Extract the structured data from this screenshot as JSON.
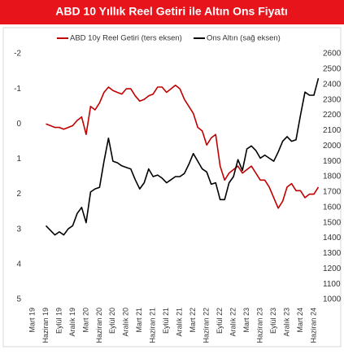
{
  "chart_data": {
    "type": "line",
    "title": "ABD 10 Yıllık Reel Getiri ile Altın Ons Fiyatı",
    "categories": [
      "Mart 19",
      null,
      null,
      "Haziran 19",
      null,
      null,
      "Eylül 19",
      null,
      null,
      "Aralık 19",
      null,
      null,
      "Mart 20",
      null,
      null,
      "Haziran 20",
      null,
      null,
      "Eylül 20",
      null,
      null,
      "Aralık 20",
      null,
      null,
      "Mart 21",
      null,
      null,
      "Haziran 21",
      null,
      null,
      "Eylül 21",
      null,
      null,
      "Aralık 21",
      null,
      null,
      "Mart 22",
      null,
      null,
      "Haziran 22",
      null,
      null,
      "Eylül 22",
      null,
      null,
      "Aralık 22",
      null,
      null,
      "Mart 23",
      null,
      null,
      "Haziran 23",
      null,
      null,
      "Eylül 23",
      null,
      null,
      "Aralık 23",
      null,
      null,
      "Mart 24",
      null,
      null,
      "Haziran 24",
      null
    ],
    "series": [
      {
        "name": "ABD 10y Reel Getiri (ters eksen)",
        "color": "#c00000",
        "axis": "y",
        "values": [
          null,
          null,
          null,
          0.0,
          0.05,
          0.1,
          0.1,
          0.15,
          0.1,
          0.05,
          -0.1,
          -0.2,
          0.3,
          -0.5,
          -0.4,
          -0.6,
          -0.9,
          -1.05,
          -0.95,
          -0.9,
          -0.85,
          -1.0,
          -1.0,
          -0.8,
          -0.65,
          -0.7,
          -0.8,
          -0.85,
          -1.05,
          -1.05,
          -0.9,
          -1.0,
          -1.1,
          -1.0,
          -0.7,
          -0.5,
          -0.3,
          0.1,
          0.2,
          0.6,
          0.4,
          0.3,
          1.2,
          1.6,
          1.4,
          1.3,
          1.2,
          1.4,
          1.3,
          1.2,
          1.4,
          1.6,
          1.6,
          1.8,
          2.1,
          2.4,
          2.2,
          1.8,
          1.7,
          1.9,
          1.9,
          2.1,
          2.0,
          2.0,
          1.8
        ]
      },
      {
        "name": "Ons Altın (sağ eksen)",
        "color": "#000000",
        "axis": "y2",
        "values": [
          null,
          null,
          null,
          1480,
          1450,
          1420,
          1440,
          1420,
          1460,
          1480,
          1560,
          1600,
          1500,
          1700,
          1720,
          1730,
          1900,
          2050,
          1900,
          1890,
          1870,
          1860,
          1850,
          1780,
          1720,
          1760,
          1850,
          1800,
          1810,
          1790,
          1760,
          1780,
          1800,
          1800,
          1820,
          1880,
          1950,
          1900,
          1850,
          1830,
          1750,
          1760,
          1650,
          1650,
          1760,
          1800,
          1910,
          1840,
          1980,
          2000,
          1970,
          1920,
          1940,
          1920,
          1900,
          1960,
          2030,
          2060,
          2030,
          2040,
          2200,
          2350,
          2330,
          2330,
          2440
        ]
      }
    ],
    "ylim": [
      -2,
      5
    ],
    "y_inverted": true,
    "yticks": [
      -2,
      -1,
      0,
      1,
      2,
      3,
      4,
      5
    ],
    "y2lim": [
      1000,
      2600
    ],
    "y2ticks": [
      1000,
      1100,
      1200,
      1300,
      1400,
      1500,
      1600,
      1700,
      1800,
      1900,
      2000,
      2100,
      2200,
      2300,
      2400,
      2500,
      2600
    ],
    "grid": false,
    "legend": "top"
  }
}
